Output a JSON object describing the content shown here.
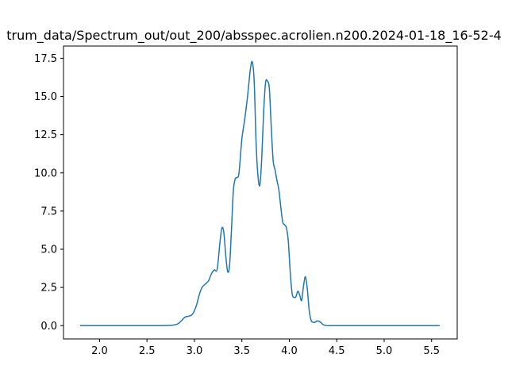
{
  "chart_data": {
    "type": "line",
    "title": "trum_data/Spectrum_out/out_200/absspec.acrolien.n200.2024-01-18_16-52-4",
    "xlabel": "",
    "ylabel": "",
    "xlim": [
      1.62,
      5.77
    ],
    "ylim": [
      -0.87,
      18.3
    ],
    "x_ticks": [
      "2.0",
      "2.5",
      "3.0",
      "3.5",
      "4.0",
      "4.5",
      "5.0",
      "5.5"
    ],
    "y_ticks": [
      "0.0",
      "2.5",
      "5.0",
      "7.5",
      "10.0",
      "12.5",
      "15.0",
      "17.5"
    ],
    "grid": false,
    "line_color": "#1f77b4",
    "series": [
      {
        "x": [
          1.8,
          2.0,
          2.2,
          2.4,
          2.6,
          2.75,
          2.82,
          2.86,
          2.9,
          2.94,
          2.98,
          3.02,
          3.05,
          3.08,
          3.12,
          3.15,
          3.18,
          3.21,
          3.24,
          3.27,
          3.29,
          3.31,
          3.33,
          3.35,
          3.37,
          3.39,
          3.41,
          3.43,
          3.45,
          3.47,
          3.5,
          3.53,
          3.56,
          3.59,
          3.61,
          3.63,
          3.65,
          3.67,
          3.69,
          3.71,
          3.73,
          3.75,
          3.77,
          3.79,
          3.81,
          3.83,
          3.85,
          3.87,
          3.89,
          3.91,
          3.93,
          3.95,
          3.97,
          3.99,
          4.01,
          4.03,
          4.05,
          4.07,
          4.09,
          4.11,
          4.13,
          4.15,
          4.17,
          4.19,
          4.21,
          4.23,
          4.25,
          4.27,
          4.29,
          4.31,
          4.33,
          4.35,
          4.37,
          4.39,
          4.41,
          4.43,
          4.45,
          4.48,
          4.51,
          4.54,
          4.57,
          4.6,
          4.63,
          4.66,
          4.7,
          4.8,
          5.0,
          5.2,
          5.4,
          5.58
        ],
        "y": [
          0.0,
          0.0,
          0.0,
          0.0,
          0.0,
          0.02,
          0.1,
          0.3,
          0.55,
          0.62,
          0.75,
          1.3,
          2.0,
          2.5,
          2.75,
          2.95,
          3.4,
          3.65,
          3.7,
          5.5,
          6.4,
          6.1,
          4.6,
          3.55,
          3.9,
          6.2,
          8.8,
          9.6,
          9.7,
          10.0,
          12.2,
          13.5,
          15.0,
          16.8,
          17.25,
          16.0,
          12.0,
          9.8,
          9.2,
          11.0,
          14.0,
          15.9,
          16.0,
          15.5,
          13.0,
          10.8,
          10.2,
          9.5,
          8.9,
          7.8,
          6.8,
          6.6,
          6.4,
          5.5,
          3.5,
          2.1,
          1.85,
          1.9,
          2.25,
          2.0,
          1.65,
          2.6,
          3.2,
          2.4,
          1.0,
          0.35,
          0.22,
          0.22,
          0.3,
          0.3,
          0.22,
          0.1,
          0.03,
          0.01,
          0.0,
          0.0,
          0.0,
          0.0,
          0.0,
          0.0,
          0.0,
          0.0,
          0.0,
          0.0,
          0.0,
          0.0,
          0.0,
          0.0,
          0.0,
          0.0
        ]
      }
    ]
  }
}
